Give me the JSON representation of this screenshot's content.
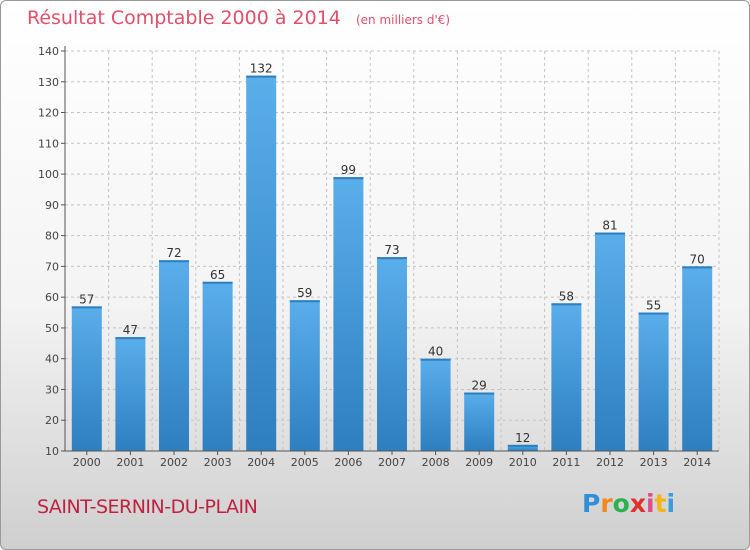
{
  "header": {
    "title": "Résultat Comptable 2000 à 2014",
    "subtitle": "(en milliers d'€)"
  },
  "footer": {
    "commune": "SAINT-SERNIN-DU-PLAIN",
    "logo_letters": [
      "P",
      "r",
      "o",
      "x",
      "i",
      "t",
      "i"
    ],
    "logo_colors": [
      "#2f8fd8",
      "#f08a1c",
      "#2bb24c",
      "#e0312c",
      "#e24a8e",
      "#f2b51b",
      "#3d9be0"
    ]
  },
  "colors": {
    "bar": "#4aa0de",
    "accent": "#e0506a"
  },
  "chart_data": {
    "type": "bar",
    "categories": [
      "2000",
      "2001",
      "2002",
      "2003",
      "2004",
      "2005",
      "2006",
      "2007",
      "2008",
      "2009",
      "2010",
      "2011",
      "2012",
      "2013",
      "2014"
    ],
    "values": [
      57,
      47,
      72,
      65,
      132,
      59,
      99,
      73,
      40,
      29,
      12,
      58,
      81,
      55,
      70
    ],
    "title": "Résultat Comptable 2000 à 2014",
    "subtitle": "(en milliers d'€)",
    "xlabel": "",
    "ylabel": "",
    "ylim": [
      10,
      140
    ],
    "yticks": [
      10,
      20,
      30,
      40,
      50,
      60,
      70,
      80,
      90,
      100,
      110,
      120,
      130,
      140
    ],
    "grid": true,
    "data_labels": true
  }
}
